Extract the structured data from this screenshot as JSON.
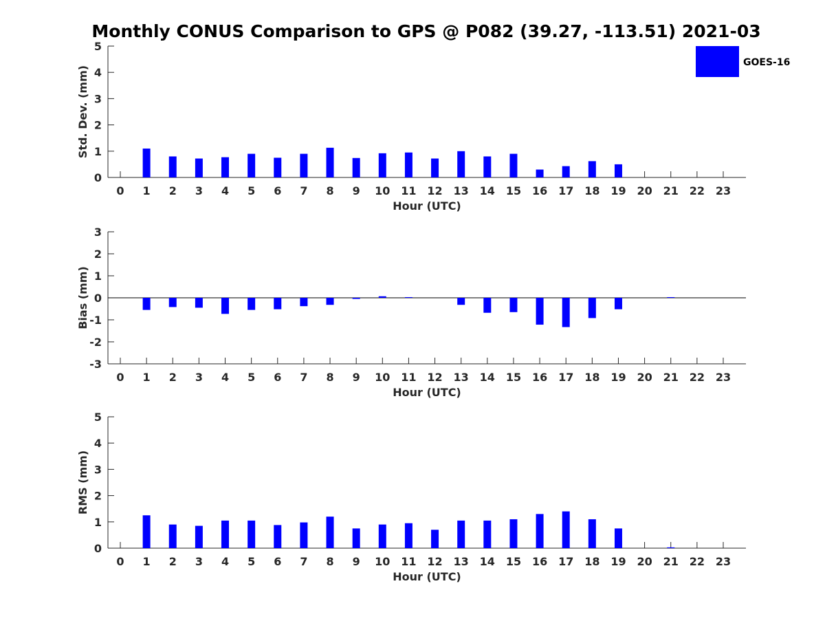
{
  "title": "Monthly CONUS Comparison to GPS @ P082 (39.27, -113.51) 2021-03",
  "legend": {
    "label": "GOES-16",
    "color": "#0000ff",
    "placement": "top-right"
  },
  "chart_data": [
    {
      "type": "bar",
      "panel": "std",
      "series_name": "GOES-16",
      "xlabel": "Hour (UTC)",
      "ylabel": "Std. Dev. (mm)",
      "ylim": [
        0,
        5
      ],
      "yticks": [
        0,
        1,
        2,
        3,
        4,
        5
      ],
      "categories": [
        "0",
        "1",
        "2",
        "3",
        "4",
        "5",
        "6",
        "7",
        "8",
        "9",
        "10",
        "11",
        "12",
        "13",
        "14",
        "15",
        "16",
        "17",
        "18",
        "19",
        "20",
        "21",
        "22",
        "23"
      ],
      "values": [
        0,
        1.1,
        0.8,
        0.72,
        0.77,
        0.9,
        0.75,
        0.9,
        1.13,
        0.74,
        0.92,
        0.95,
        0.72,
        1.0,
        0.8,
        0.9,
        0.3,
        0.43,
        0.62,
        0.5,
        0,
        0,
        0,
        0
      ],
      "color": "#0000ff",
      "grid": false
    },
    {
      "type": "bar",
      "panel": "bias",
      "series_name": "GOES-16",
      "xlabel": "Hour (UTC)",
      "ylabel": "Bias (mm)",
      "ylim": [
        -3,
        3
      ],
      "yticks": [
        -3,
        -2,
        -1,
        0,
        1,
        2,
        3
      ],
      "categories": [
        "0",
        "1",
        "2",
        "3",
        "4",
        "5",
        "6",
        "7",
        "8",
        "9",
        "10",
        "11",
        "12",
        "13",
        "14",
        "15",
        "16",
        "17",
        "18",
        "19",
        "20",
        "21",
        "22",
        "23"
      ],
      "values": [
        0,
        -0.55,
        -0.42,
        -0.45,
        -0.73,
        -0.55,
        -0.52,
        -0.38,
        -0.32,
        -0.05,
        0.07,
        0.03,
        0,
        -0.32,
        -0.68,
        -0.65,
        -1.22,
        -1.33,
        -0.92,
        -0.52,
        0,
        0.03,
        0,
        0
      ],
      "color": "#0000ff",
      "zero_line": true,
      "grid": false
    },
    {
      "type": "bar",
      "panel": "rms",
      "series_name": "GOES-16",
      "xlabel": "Hour (UTC)",
      "ylabel": "RMS (mm)",
      "ylim": [
        0,
        5
      ],
      "yticks": [
        0,
        1,
        2,
        3,
        4,
        5
      ],
      "categories": [
        "0",
        "1",
        "2",
        "3",
        "4",
        "5",
        "6",
        "7",
        "8",
        "9",
        "10",
        "11",
        "12",
        "13",
        "14",
        "15",
        "16",
        "17",
        "18",
        "19",
        "20",
        "21",
        "22",
        "23"
      ],
      "values": [
        0,
        1.25,
        0.9,
        0.85,
        1.05,
        1.05,
        0.88,
        0.98,
        1.2,
        0.75,
        0.9,
        0.95,
        0.7,
        1.05,
        1.05,
        1.1,
        1.3,
        1.4,
        1.1,
        0.75,
        0,
        0.03,
        0,
        0
      ],
      "color": "#0000ff",
      "grid": false
    }
  ]
}
